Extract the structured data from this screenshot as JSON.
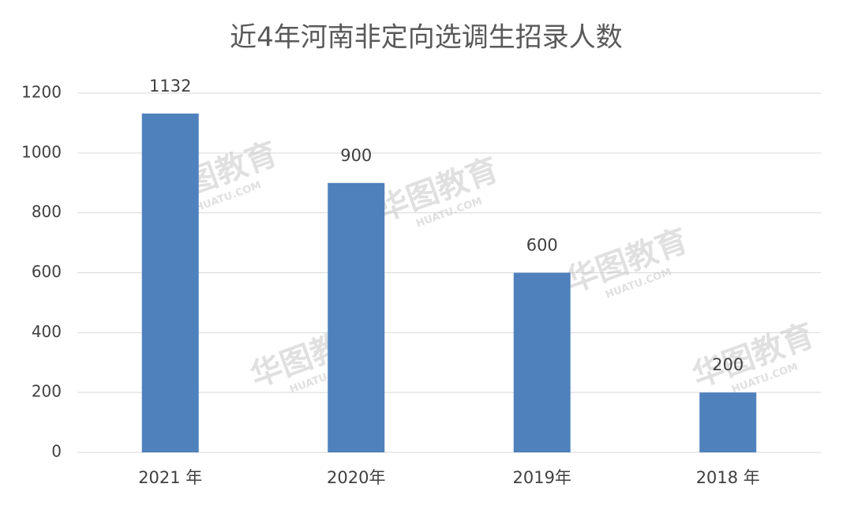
{
  "chart_data": {
    "type": "bar",
    "title": "近4年河南非定向选调生招录人数",
    "categories": [
      "2021 年",
      "2020年",
      "2019年",
      "2018 年"
    ],
    "values": [
      1132,
      900,
      600,
      200
    ],
    "color": "#4f81bd",
    "ylim": [
      0,
      1200
    ],
    "yticks": [
      0,
      200,
      400,
      600,
      800,
      1000,
      1200
    ],
    "grid": true,
    "watermark": "华图教育",
    "watermark_url": "HUATU.COM"
  }
}
